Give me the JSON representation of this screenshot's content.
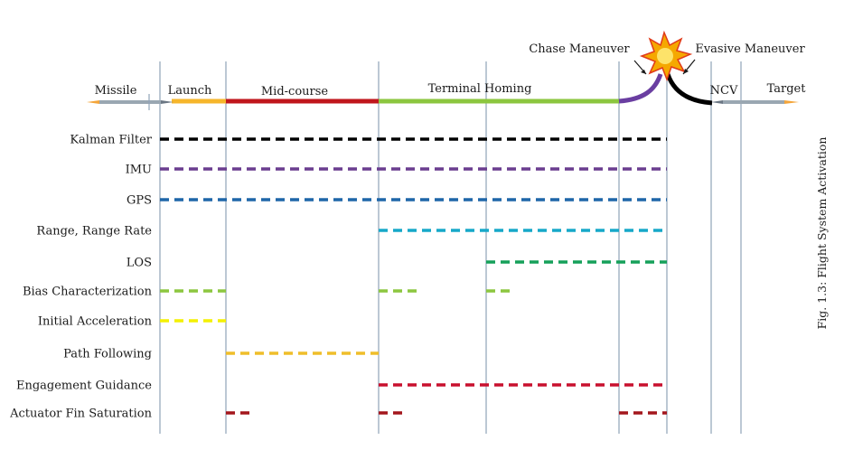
{
  "phases": {
    "missile": "Missile",
    "launch": "Launch",
    "midcourse": "Mid-course",
    "terminal": "Terminal Homing",
    "ncv": "NCV",
    "target": "Target"
  },
  "maneuvers": {
    "chase": "Chase Maneuver",
    "evasive": "Evasive Maneuver"
  },
  "caption": "Fig. 1.3: Flight System Activation",
  "colors": {
    "launch": "#f6b62b",
    "midcourse": "#c0161c",
    "terminal": "#8cc63f",
    "chase": "#6a3ea1",
    "evasive": "#000000",
    "kalman": "#000000",
    "imu": "#6a3d8f",
    "gps": "#1f66a8",
    "range": "#17a8c9",
    "los": "#16a05a",
    "bias": "#8cc63f",
    "initial_accel": "#f4f000",
    "path": "#efbe2a",
    "engagement": "#c8102e",
    "actuator": "#a3161c"
  },
  "systems": [
    {
      "label": "Kalman Filter",
      "color": "#000000",
      "segments": [
        [
          "launch_start",
          "explosion"
        ]
      ]
    },
    {
      "label": "IMU",
      "color": "#6a3d8f",
      "segments": [
        [
          "launch_start",
          "explosion"
        ]
      ]
    },
    {
      "label": "GPS",
      "color": "#1f66a8",
      "segments": [
        [
          "launch_start",
          "explosion"
        ]
      ]
    },
    {
      "label": "Range, Range Rate",
      "color": "#17a8c9",
      "segments": [
        [
          "terminal_start",
          "explosion"
        ]
      ]
    },
    {
      "label": "LOS",
      "color": "#16a05a",
      "segments": [
        [
          "los_start",
          "explosion"
        ]
      ]
    },
    {
      "label": "Bias Characterization",
      "color": "#8cc63f",
      "segments": [
        [
          "launch_start",
          "midcourse_start"
        ],
        [
          "terminal_start",
          "terminal_bias_end"
        ],
        [
          "los_start",
          "los_bias_end"
        ]
      ]
    },
    {
      "label": "Initial Acceleration",
      "color": "#f4f000",
      "segments": [
        [
          "launch_start",
          "midcourse_start"
        ]
      ]
    },
    {
      "label": "Path Following",
      "color": "#efbe2a",
      "segments": [
        [
          "midcourse_start",
          "terminal_start"
        ]
      ]
    },
    {
      "label": "Engagement Guidance",
      "color": "#c8102e",
      "segments": [
        [
          "terminal_start",
          "explosion"
        ]
      ]
    },
    {
      "label": "Actuator Fin Saturation",
      "color": "#a3161c",
      "segments": [
        [
          "midcourse_start",
          "mc_act_end"
        ],
        [
          "terminal_start",
          "th_act_end"
        ],
        [
          "chase_start",
          "explosion"
        ]
      ]
    }
  ]
}
